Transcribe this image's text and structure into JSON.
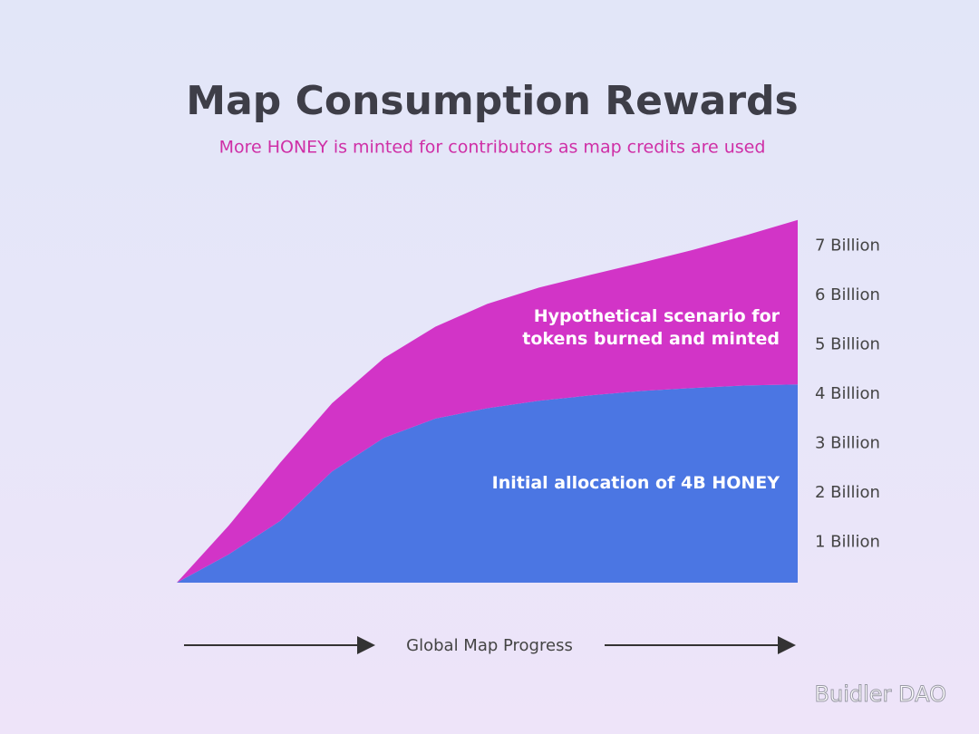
{
  "chart_data": {
    "type": "stacked-area",
    "title": "Map Consumption Rewards",
    "subtitle": "More HONEY is minted for contributors as map credits are used",
    "x_label": "Global Map Progress",
    "categories": [
      null,
      null,
      null,
      null,
      null,
      null,
      null,
      null,
      null,
      null,
      null,
      null,
      null
    ],
    "series": [
      {
        "name": "Initial allocation of 4B HONEY",
        "color": "#4b76e3",
        "values": [
          0,
          0.57,
          1.25,
          2.25,
          2.93,
          3.32,
          3.53,
          3.68,
          3.79,
          3.88,
          3.94,
          3.99,
          4.01
        ]
      },
      {
        "name": "Hypothetical scenario for tokens burned and minted",
        "color": "#d234c7",
        "values": [
          0,
          0.58,
          1.18,
          1.38,
          1.61,
          1.86,
          2.11,
          2.29,
          2.44,
          2.6,
          2.8,
          3.04,
          3.33
        ]
      }
    ],
    "ylim": [
      0,
      7.5
    ],
    "yticks": [
      {
        "value": 1,
        "label": "1 Billion"
      },
      {
        "value": 2,
        "label": "2 Billion"
      },
      {
        "value": 3,
        "label": "3 Billion"
      },
      {
        "value": 4,
        "label": "4 Billion"
      },
      {
        "value": 5,
        "label": "5 Billion"
      },
      {
        "value": 6,
        "label": "6 Billion"
      },
      {
        "value": 7,
        "label": "7 Billion"
      }
    ],
    "watermark": "Buidler DAO"
  }
}
